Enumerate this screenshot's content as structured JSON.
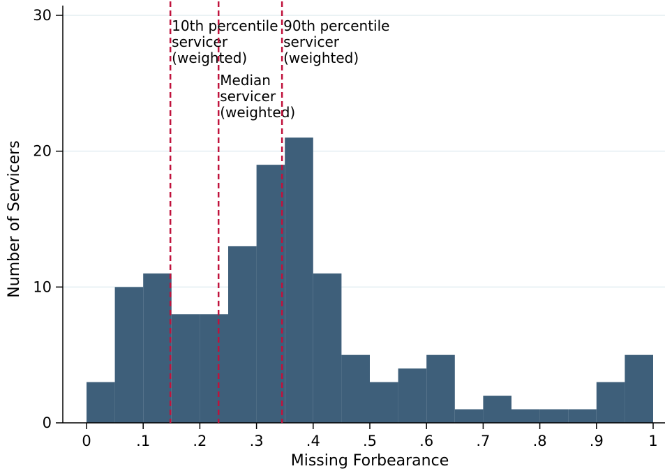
{
  "chart_data": {
    "type": "bar",
    "title": "",
    "xlabel": "Missing Forbearance",
    "ylabel": "Number of Servicers",
    "bin_width": 0.05,
    "bin_starts": [
      0,
      0.05,
      0.1,
      0.15,
      0.2,
      0.25,
      0.3,
      0.35,
      0.4,
      0.45,
      0.5,
      0.55,
      0.6,
      0.65,
      0.7,
      0.75,
      0.8,
      0.85,
      0.9,
      0.95
    ],
    "values": [
      3,
      10,
      11,
      8,
      8,
      13,
      19,
      21,
      11,
      5,
      3,
      4,
      5,
      1,
      2,
      1,
      1,
      1,
      3,
      5
    ],
    "xlim": [
      0,
      1
    ],
    "ylim": [
      0,
      30
    ],
    "x_ticks": [
      0,
      0.1,
      0.2,
      0.3,
      0.4,
      0.5,
      0.6,
      0.7,
      0.8,
      0.9,
      1
    ],
    "x_tick_labels": [
      "0",
      ".1",
      ".2",
      ".3",
      ".4",
      ".5",
      ".6",
      ".7",
      ".8",
      ".9",
      "1"
    ],
    "y_ticks": [
      0,
      10,
      20,
      30
    ],
    "y_tick_labels": [
      "0",
      "10",
      "20",
      "30"
    ],
    "grid": true,
    "color": "#3e5f7a",
    "reference_lines": [
      {
        "x": 0.148,
        "label_lines": [
          "10th percentile",
          "servicer",
          "(weighted)"
        ],
        "color": "#c0123c"
      },
      {
        "x": 0.233,
        "label_lines": [
          "Median",
          "servicer",
          "(weighted)"
        ],
        "color": "#c0123c"
      },
      {
        "x": 0.345,
        "label_lines": [
          "90th percentile",
          "servicer",
          "(weighted)"
        ],
        "color": "#c0123c"
      }
    ]
  }
}
